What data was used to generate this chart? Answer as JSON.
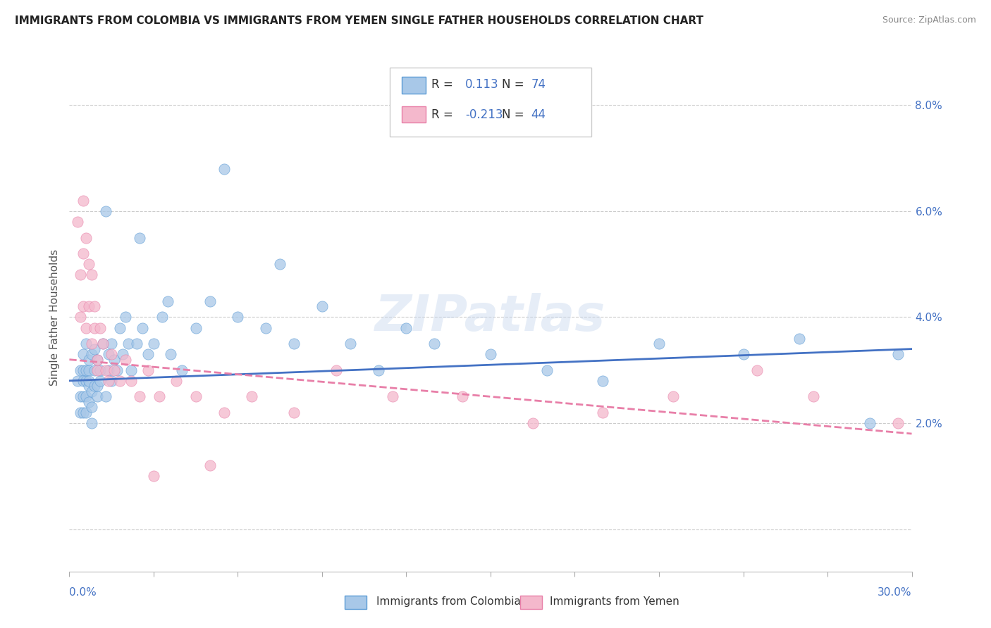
{
  "title": "IMMIGRANTS FROM COLOMBIA VS IMMIGRANTS FROM YEMEN SINGLE FATHER HOUSEHOLDS CORRELATION CHART",
  "source": "Source: ZipAtlas.com",
  "ylabel": "Single Father Households",
  "y_ticks": [
    0.0,
    0.02,
    0.04,
    0.06,
    0.08
  ],
  "y_tick_labels": [
    "",
    "2.0%",
    "4.0%",
    "6.0%",
    "8.0%"
  ],
  "x_min": 0.0,
  "x_max": 0.3,
  "y_min": -0.008,
  "y_max": 0.088,
  "colombia_fill": "#a8c8e8",
  "colombia_edge": "#5b9bd5",
  "yemen_fill": "#f4b8cc",
  "yemen_edge": "#e87fa8",
  "colombia_line_color": "#4472c4",
  "yemen_line_color": "#e87fa8",
  "R_colombia": 0.113,
  "N_colombia": 74,
  "R_yemen": -0.213,
  "N_yemen": 44,
  "watermark": "ZIPatlas",
  "legend_text_color": "#4472c4",
  "colombia_scatter_x": [
    0.003,
    0.004,
    0.004,
    0.004,
    0.005,
    0.005,
    0.005,
    0.005,
    0.005,
    0.006,
    0.006,
    0.006,
    0.006,
    0.006,
    0.007,
    0.007,
    0.007,
    0.007,
    0.007,
    0.008,
    0.008,
    0.008,
    0.008,
    0.009,
    0.009,
    0.009,
    0.01,
    0.01,
    0.01,
    0.011,
    0.011,
    0.012,
    0.013,
    0.014,
    0.014,
    0.015,
    0.015,
    0.016,
    0.017,
    0.018,
    0.019,
    0.02,
    0.021,
    0.022,
    0.024,
    0.026,
    0.028,
    0.03,
    0.033,
    0.036,
    0.04,
    0.045,
    0.05,
    0.06,
    0.07,
    0.08,
    0.09,
    0.1,
    0.11,
    0.13,
    0.15,
    0.17,
    0.19,
    0.21,
    0.24,
    0.26,
    0.285,
    0.295,
    0.013,
    0.025,
    0.035,
    0.055,
    0.075,
    0.12
  ],
  "colombia_scatter_y": [
    0.028,
    0.025,
    0.03,
    0.022,
    0.03,
    0.025,
    0.028,
    0.022,
    0.033,
    0.028,
    0.025,
    0.03,
    0.022,
    0.035,
    0.03,
    0.027,
    0.032,
    0.024,
    0.028,
    0.026,
    0.023,
    0.033,
    0.02,
    0.03,
    0.034,
    0.027,
    0.025,
    0.032,
    0.027,
    0.028,
    0.03,
    0.035,
    0.025,
    0.033,
    0.03,
    0.028,
    0.035,
    0.032,
    0.03,
    0.038,
    0.033,
    0.04,
    0.035,
    0.03,
    0.035,
    0.038,
    0.033,
    0.035,
    0.04,
    0.033,
    0.03,
    0.038,
    0.043,
    0.04,
    0.038,
    0.035,
    0.042,
    0.035,
    0.03,
    0.035,
    0.033,
    0.03,
    0.028,
    0.035,
    0.033,
    0.036,
    0.02,
    0.033,
    0.06,
    0.055,
    0.043,
    0.068,
    0.05,
    0.038
  ],
  "yemen_scatter_x": [
    0.003,
    0.004,
    0.004,
    0.005,
    0.005,
    0.005,
    0.006,
    0.006,
    0.007,
    0.007,
    0.008,
    0.008,
    0.009,
    0.009,
    0.01,
    0.01,
    0.011,
    0.012,
    0.013,
    0.014,
    0.015,
    0.016,
    0.018,
    0.02,
    0.022,
    0.025,
    0.028,
    0.032,
    0.038,
    0.045,
    0.055,
    0.065,
    0.08,
    0.095,
    0.115,
    0.14,
    0.165,
    0.19,
    0.215,
    0.245,
    0.265,
    0.295,
    0.03,
    0.05
  ],
  "yemen_scatter_y": [
    0.058,
    0.048,
    0.04,
    0.062,
    0.052,
    0.042,
    0.055,
    0.038,
    0.05,
    0.042,
    0.048,
    0.035,
    0.042,
    0.038,
    0.03,
    0.032,
    0.038,
    0.035,
    0.03,
    0.028,
    0.033,
    0.03,
    0.028,
    0.032,
    0.028,
    0.025,
    0.03,
    0.025,
    0.028,
    0.025,
    0.022,
    0.025,
    0.022,
    0.03,
    0.025,
    0.025,
    0.02,
    0.022,
    0.025,
    0.03,
    0.025,
    0.02,
    0.01,
    0.012
  ]
}
